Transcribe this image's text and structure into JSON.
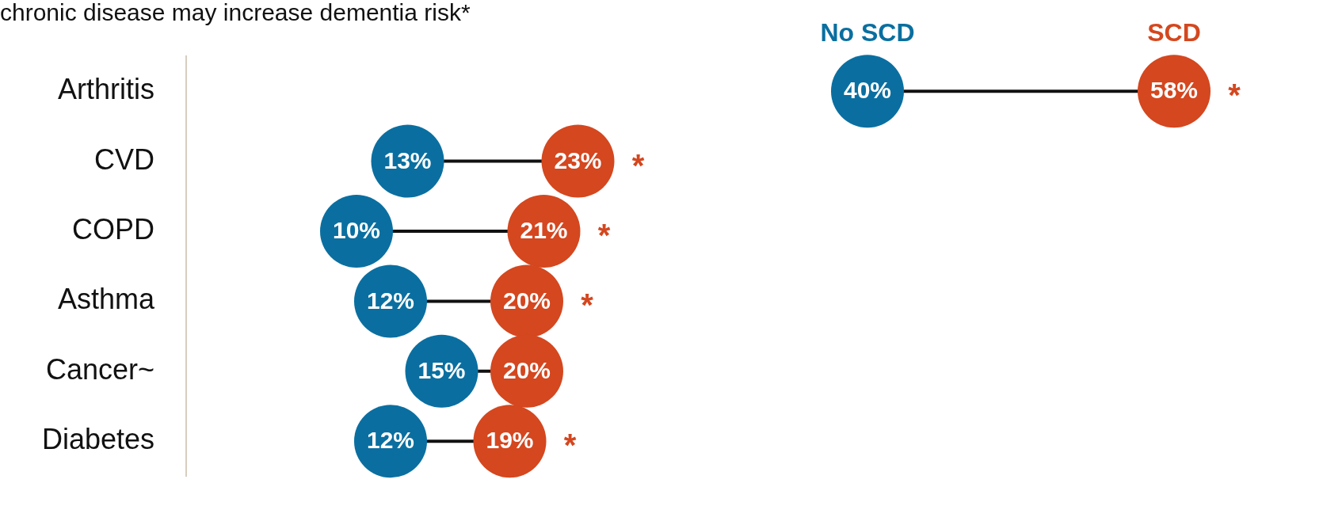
{
  "chart_data": {
    "type": "scatter",
    "orientation": "horizontal",
    "title": "chronic disease may increase dementia risk*",
    "categories": [
      "Arthritis",
      "CVD",
      "COPD",
      "Asthma",
      "Cancer~",
      "Diabetes"
    ],
    "tick_labels": "y",
    "legend": false,
    "marker": "circle",
    "series": [
      {
        "name": "No SCD",
        "color": "#0a6fa0",
        "values": [
          40,
          13,
          10,
          12,
          15,
          12
        ],
        "value_labels": [
          "40%",
          "13%",
          "10%",
          "12%",
          "15%",
          "12%"
        ]
      },
      {
        "name": "SCD",
        "color": "#d4471f",
        "values": [
          58,
          23,
          21,
          20,
          20,
          19
        ],
        "value_labels": [
          "58%",
          "23%",
          "21%",
          "20%",
          "20%",
          "19%"
        ]
      }
    ],
    "annotations": [
      {
        "text": "*",
        "x": 58,
        "y": "Arthritis"
      },
      {
        "text": "*",
        "x": 23,
        "y": "CVD"
      },
      {
        "text": "*",
        "x": 21,
        "y": "COPD"
      },
      {
        "text": "*",
        "x": 20,
        "y": "Asthma"
      },
      {
        "text": "*",
        "x": 19,
        "y": "Diabetes"
      }
    ]
  }
}
